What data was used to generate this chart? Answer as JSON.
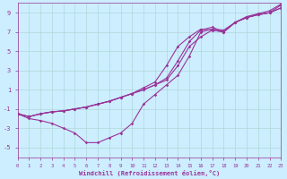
{
  "xlabel": "Windchill (Refroidissement éolien,°C)",
  "bg_color": "#cceeff",
  "grid_color": "#b0d8d8",
  "line_color": "#993399",
  "xlim": [
    0,
    23
  ],
  "ylim": [
    -6,
    10
  ],
  "xticks": [
    0,
    1,
    2,
    3,
    4,
    5,
    6,
    7,
    8,
    9,
    10,
    11,
    12,
    13,
    14,
    15,
    16,
    17,
    18,
    19,
    20,
    21,
    22,
    23
  ],
  "yticks": [
    -5,
    -3,
    -1,
    1,
    3,
    5,
    7,
    9
  ],
  "series1_x": [
    0,
    1,
    2,
    3,
    4,
    5,
    6,
    7,
    8,
    9,
    10,
    11,
    12,
    13,
    14,
    15,
    16,
    17,
    18,
    19,
    20,
    21,
    22,
    23
  ],
  "series1_y": [
    -1.5,
    -1.8,
    -1.5,
    -1.3,
    -1.2,
    -1.0,
    -0.8,
    -0.5,
    -0.2,
    0.2,
    0.6,
    1.0,
    1.5,
    2.0,
    3.5,
    5.5,
    6.5,
    7.2,
    7.0,
    8.0,
    8.5,
    8.8,
    9.0,
    9.8
  ],
  "series2_x": [
    0,
    1,
    2,
    3,
    4,
    5,
    6,
    7,
    8,
    9,
    10,
    11,
    12,
    13,
    14,
    15,
    16,
    17,
    18,
    19,
    20,
    21,
    22,
    23
  ],
  "series2_y": [
    -1.5,
    -1.8,
    -1.5,
    -1.3,
    -1.2,
    -1.0,
    -0.8,
    -0.5,
    -0.2,
    0.2,
    0.6,
    1.2,
    1.8,
    3.5,
    5.5,
    6.5,
    7.3,
    7.2,
    7.0,
    8.0,
    8.5,
    8.8,
    9.0,
    9.5
  ],
  "series3_x": [
    0,
    1,
    2,
    3,
    4,
    5,
    6,
    7,
    8,
    9,
    10,
    11,
    12,
    13,
    14,
    15,
    16,
    17,
    18,
    19,
    20,
    21,
    22,
    23
  ],
  "series3_y": [
    -1.5,
    -2.0,
    -2.2,
    -2.5,
    -3.0,
    -3.5,
    -4.5,
    -4.5,
    -4.0,
    -3.5,
    -2.5,
    -0.5,
    0.5,
    1.5,
    2.5,
    4.5,
    7.0,
    7.3,
    7.2,
    8.0,
    8.6,
    8.9,
    9.2,
    9.9
  ],
  "series4_x": [
    0,
    1,
    2,
    3,
    4,
    5,
    6,
    7,
    8,
    9,
    10,
    11,
    12,
    13,
    14,
    15,
    16,
    17,
    18,
    19,
    20,
    21,
    22,
    23
  ],
  "series4_y": [
    -1.5,
    -1.8,
    -1.5,
    -1.3,
    -1.2,
    -1.0,
    -0.8,
    -0.5,
    -0.2,
    0.2,
    0.6,
    1.0,
    1.5,
    2.2,
    4.0,
    6.0,
    7.2,
    7.5,
    7.0,
    8.0,
    8.5,
    8.8,
    9.0,
    9.5
  ]
}
